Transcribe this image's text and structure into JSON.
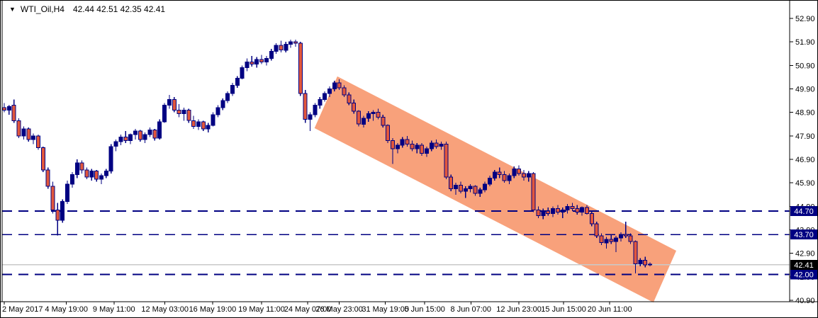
{
  "window": {
    "dropdown_icon": "▼",
    "title_symbol": "WTI_Oil,H4",
    "title_ohlc": "42.44 42.51 42.35 42.41"
  },
  "colors": {
    "background": "#FFFFFF",
    "navy": "#000082",
    "bear_fill": "#E2573C",
    "channel_fill": "#F8A17B",
    "current_line_gray": "#C9C9C9",
    "axis_black": "#000000",
    "badge_navy_bg": "#000082",
    "badge_black_bg": "#000000",
    "badge_text": "#FFFFFF"
  },
  "chart_data": {
    "type": "candlestick",
    "title": "WTI_Oil,H4",
    "symbol": "WTI_Oil",
    "timeframe": "H4",
    "ylim": [
      40.9,
      52.9
    ],
    "grid": false,
    "y_ticks": [
      "52.90",
      "51.90",
      "50.90",
      "49.90",
      "48.90",
      "47.90",
      "46.90",
      "45.90",
      "44.90",
      "43.90",
      "42.90",
      "41.90",
      "40.90"
    ],
    "x_ticks": [
      {
        "label": "2 May 2017",
        "index": 0
      },
      {
        "label": "4 May 19:00",
        "index": 12.8
      },
      {
        "label": "9 May 11:00",
        "index": 22.6
      },
      {
        "label": "12 May 03:00",
        "index": 33.1
      },
      {
        "label": "16 May 19:00",
        "index": 42.9
      },
      {
        "label": "19 May 11:00",
        "index": 53
      },
      {
        "label": "24 May 07:00",
        "index": 62.5
      },
      {
        "label": "26 May 23:00",
        "index": 69
      },
      {
        "label": "31 May 19:00",
        "index": 78.5
      },
      {
        "label": "5 Jun 15:00",
        "index": 86.6
      },
      {
        "label": "8 Jun 07:00",
        "index": 96.1
      },
      {
        "label": "12 Jun 23:00",
        "index": 106
      },
      {
        "label": "15 Jun 15:00",
        "index": 115.2
      },
      {
        "label": "20 Jun 11:00",
        "index": 124.7
      }
    ],
    "levels": [
      {
        "price": 44.7,
        "label": "44.70",
        "style": "dashed"
      },
      {
        "price": 43.7,
        "label": "43.70",
        "style": "dashed"
      },
      {
        "price": 42.0,
        "label": "42.00",
        "style": "dashed"
      }
    ],
    "price_line": {
      "price": 42.41,
      "label": "42.41",
      "style": "solid-gray"
    },
    "channel": {
      "shape": "parallelogram",
      "points_index_price": [
        [
          68.6,
          50.43
        ],
        [
          138.4,
          43.01
        ],
        [
          133.7,
          40.81
        ],
        [
          63.9,
          48.23
        ]
      ]
    },
    "candles": [
      [
        49.1,
        49.3,
        48.9,
        49.0
      ],
      [
        49.0,
        49.2,
        48.8,
        49.15
      ],
      [
        49.2,
        49.45,
        48.45,
        48.55
      ],
      [
        48.55,
        48.65,
        47.8,
        47.9
      ],
      [
        47.9,
        48.3,
        47.75,
        48.2
      ],
      [
        48.2,
        48.25,
        47.65,
        47.75
      ],
      [
        47.75,
        48.0,
        47.55,
        47.9
      ],
      [
        47.9,
        47.95,
        47.3,
        47.4
      ],
      [
        47.4,
        47.45,
        46.35,
        46.45
      ],
      [
        46.45,
        46.55,
        45.65,
        45.75
      ],
      [
        45.75,
        45.95,
        44.6,
        44.75
      ],
      [
        44.75,
        45.05,
        43.66,
        44.3
      ],
      [
        44.3,
        45.2,
        44.2,
        45.1
      ],
      [
        45.1,
        46.0,
        45.0,
        45.85
      ],
      [
        45.85,
        46.35,
        45.7,
        46.25
      ],
      [
        46.25,
        46.9,
        46.1,
        46.75
      ],
      [
        46.75,
        46.85,
        46.3,
        46.45
      ],
      [
        46.45,
        46.55,
        46.05,
        46.15
      ],
      [
        46.15,
        46.5,
        46.0,
        46.4
      ],
      [
        46.4,
        46.45,
        45.95,
        46.05
      ],
      [
        46.05,
        46.3,
        45.85,
        46.2
      ],
      [
        46.2,
        46.5,
        46.1,
        46.4
      ],
      [
        46.4,
        47.55,
        46.3,
        47.45
      ],
      [
        47.45,
        47.75,
        47.25,
        47.65
      ],
      [
        47.65,
        47.95,
        47.5,
        47.85
      ],
      [
        47.85,
        48.1,
        47.6,
        47.7
      ],
      [
        47.7,
        48.0,
        47.55,
        47.95
      ],
      [
        47.95,
        48.2,
        47.75,
        48.1
      ],
      [
        48.1,
        48.15,
        47.65,
        47.75
      ],
      [
        47.75,
        48.05,
        47.6,
        47.95
      ],
      [
        47.95,
        48.25,
        47.85,
        48.15
      ],
      [
        48.15,
        48.2,
        47.7,
        47.8
      ],
      [
        47.8,
        48.6,
        47.75,
        48.5
      ],
      [
        48.5,
        49.3,
        48.45,
        49.2
      ],
      [
        49.2,
        49.65,
        49.05,
        49.45
      ],
      [
        49.45,
        49.55,
        48.9,
        49.0
      ],
      [
        49.0,
        49.25,
        48.7,
        48.85
      ],
      [
        48.85,
        49.1,
        48.55,
        49.0
      ],
      [
        49.0,
        49.05,
        48.45,
        48.55
      ],
      [
        48.55,
        48.75,
        48.2,
        48.3
      ],
      [
        48.3,
        48.6,
        48.15,
        48.5
      ],
      [
        48.5,
        48.55,
        48.1,
        48.2
      ],
      [
        48.2,
        48.45,
        48.05,
        48.35
      ],
      [
        48.35,
        48.9,
        48.3,
        48.8
      ],
      [
        48.8,
        49.2,
        48.7,
        49.1
      ],
      [
        49.1,
        49.5,
        49.0,
        49.4
      ],
      [
        49.4,
        49.8,
        49.3,
        49.7
      ],
      [
        49.7,
        50.15,
        49.6,
        50.05
      ],
      [
        50.05,
        50.45,
        49.95,
        50.35
      ],
      [
        50.35,
        50.9,
        50.3,
        50.8
      ],
      [
        50.8,
        51.2,
        50.65,
        51.05
      ],
      [
        51.05,
        51.3,
        50.85,
        50.95
      ],
      [
        50.95,
        51.25,
        50.8,
        51.15
      ],
      [
        51.15,
        51.35,
        50.95,
        51.05
      ],
      [
        51.05,
        51.3,
        50.9,
        51.2
      ],
      [
        51.2,
        51.6,
        51.1,
        51.5
      ],
      [
        51.5,
        51.85,
        51.4,
        51.75
      ],
      [
        51.75,
        51.95,
        51.45,
        51.55
      ],
      [
        51.55,
        51.9,
        51.45,
        51.8
      ],
      [
        51.8,
        52.0,
        51.65,
        51.9
      ],
      [
        51.9,
        52.0,
        51.7,
        51.85
      ],
      [
        51.85,
        51.9,
        49.6,
        49.7
      ],
      [
        49.7,
        49.85,
        48.45,
        48.6
      ],
      [
        48.6,
        48.9,
        48.1,
        48.8
      ],
      [
        48.8,
        49.3,
        48.7,
        49.2
      ],
      [
        49.2,
        49.55,
        49.05,
        49.45
      ],
      [
        49.45,
        49.8,
        49.35,
        49.7
      ],
      [
        49.7,
        50.0,
        49.55,
        49.9
      ],
      [
        49.9,
        50.25,
        49.8,
        50.15
      ],
      [
        50.15,
        50.3,
        49.85,
        49.95
      ],
      [
        49.95,
        50.05,
        49.55,
        49.65
      ],
      [
        49.65,
        49.75,
        49.2,
        49.3
      ],
      [
        49.3,
        49.45,
        48.85,
        48.95
      ],
      [
        48.95,
        49.0,
        48.3,
        48.4
      ],
      [
        48.4,
        48.75,
        48.25,
        48.65
      ],
      [
        48.65,
        48.95,
        48.5,
        48.85
      ],
      [
        48.85,
        49.0,
        48.55,
        48.9
      ],
      [
        48.9,
        49.05,
        48.6,
        48.7
      ],
      [
        48.7,
        48.8,
        48.25,
        48.35
      ],
      [
        48.35,
        48.4,
        47.6,
        47.7
      ],
      [
        47.7,
        47.8,
        46.7,
        47.35
      ],
      [
        47.35,
        47.6,
        47.15,
        47.5
      ],
      [
        47.5,
        47.85,
        47.4,
        47.75
      ],
      [
        47.75,
        47.9,
        47.45,
        47.55
      ],
      [
        47.55,
        47.7,
        47.25,
        47.35
      ],
      [
        47.35,
        47.6,
        47.15,
        47.5
      ],
      [
        47.5,
        47.6,
        47.05,
        47.15
      ],
      [
        47.15,
        47.45,
        47.0,
        47.35
      ],
      [
        47.35,
        47.7,
        47.25,
        47.6
      ],
      [
        47.6,
        47.75,
        47.35,
        47.45
      ],
      [
        47.45,
        47.65,
        47.3,
        47.55
      ],
      [
        47.55,
        47.65,
        46.05,
        46.15
      ],
      [
        46.15,
        46.25,
        45.55,
        45.65
      ],
      [
        45.65,
        45.9,
        45.4,
        45.8
      ],
      [
        45.8,
        45.95,
        45.45,
        45.55
      ],
      [
        45.55,
        45.75,
        45.25,
        45.65
      ],
      [
        45.65,
        45.85,
        45.5,
        45.75
      ],
      [
        45.75,
        45.8,
        45.35,
        45.45
      ],
      [
        45.45,
        45.7,
        45.3,
        45.6
      ],
      [
        45.6,
        45.95,
        45.5,
        45.85
      ],
      [
        45.85,
        46.2,
        45.75,
        46.1
      ],
      [
        46.1,
        46.45,
        46.0,
        46.35
      ],
      [
        46.35,
        46.55,
        46.1,
        46.25
      ],
      [
        46.25,
        46.4,
        45.9,
        46.0
      ],
      [
        46.0,
        46.3,
        45.85,
        46.2
      ],
      [
        46.2,
        46.6,
        46.1,
        46.5
      ],
      [
        46.5,
        46.65,
        46.2,
        46.3
      ],
      [
        46.3,
        46.45,
        46.0,
        46.15
      ],
      [
        46.15,
        46.4,
        45.95,
        46.3
      ],
      [
        46.3,
        46.35,
        44.65,
        44.75
      ],
      [
        44.75,
        44.9,
        44.4,
        44.5
      ],
      [
        44.5,
        44.8,
        44.35,
        44.7
      ],
      [
        44.7,
        44.85,
        44.5,
        44.6
      ],
      [
        44.6,
        44.9,
        44.45,
        44.8
      ],
      [
        44.8,
        44.95,
        44.55,
        44.65
      ],
      [
        44.65,
        44.85,
        44.4,
        44.75
      ],
      [
        44.75,
        45.0,
        44.6,
        44.9
      ],
      [
        44.9,
        45.05,
        44.7,
        44.8
      ],
      [
        44.8,
        44.95,
        44.55,
        44.65
      ],
      [
        44.65,
        44.9,
        44.5,
        44.85
      ],
      [
        44.85,
        44.95,
        44.55,
        44.6
      ],
      [
        44.6,
        44.7,
        44.05,
        44.15
      ],
      [
        44.15,
        44.25,
        43.55,
        43.65
      ],
      [
        43.65,
        43.75,
        43.25,
        43.35
      ],
      [
        43.35,
        43.6,
        43.1,
        43.5
      ],
      [
        43.5,
        43.7,
        43.3,
        43.4
      ],
      [
        43.4,
        43.65,
        42.95,
        43.55
      ],
      [
        43.55,
        43.8,
        43.4,
        43.7
      ],
      [
        43.7,
        44.25,
        43.55,
        43.65
      ],
      [
        43.65,
        43.75,
        43.3,
        43.4
      ],
      [
        43.4,
        43.45,
        42.05,
        42.45
      ],
      [
        42.45,
        42.7,
        42.35,
        42.6
      ],
      [
        42.6,
        42.75,
        42.3,
        42.4
      ],
      [
        42.44,
        42.51,
        42.35,
        42.41
      ]
    ]
  }
}
